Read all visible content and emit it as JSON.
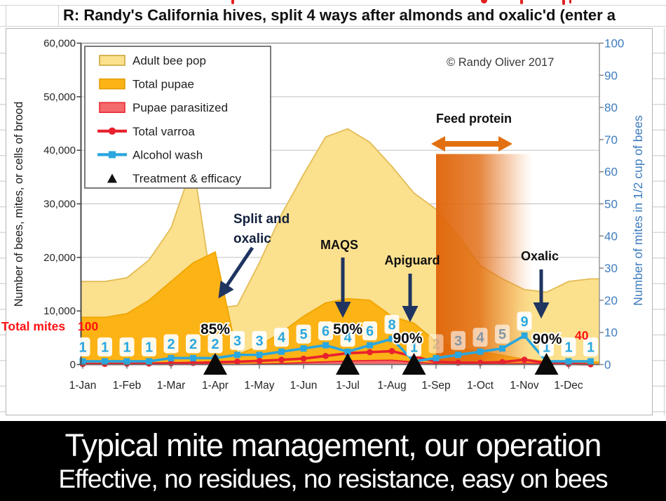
{
  "spreadsheet": {
    "title_row_text": "R: Randy's California hives, split 4 ways after almonds and oxalic'd (enter a"
  },
  "banner": {
    "line1": "Typical mite management, our operation",
    "line2": "Effective, no residues, no resistance, easy on bees"
  },
  "chart_data": {
    "type": "area+line combo, semi-monthly points",
    "x_labels": [
      "1-Jan",
      "1-Feb",
      "1-Mar",
      "1-Apr",
      "1-May",
      "1-Jun",
      "1-Jul",
      "1-Aug",
      "1-Sep",
      "1-Oct",
      "1-Nov",
      "1-Dec"
    ],
    "left_axis": {
      "title": "Number of bees, mites, or cells of brood",
      "min": 0,
      "max": 60000,
      "step": 10000,
      "tick_labels": [
        "0",
        "10,000",
        "20,000",
        "30,000",
        "40,000",
        "50,000",
        "60,000"
      ]
    },
    "right_axis": {
      "title": "Number of mites in 1/2 cup of bees",
      "min": 0,
      "max": 100,
      "step": 10,
      "tick_labels": [
        "0",
        "10",
        "20",
        "30",
        "40",
        "50",
        "60",
        "70",
        "80",
        "90",
        "100"
      ]
    },
    "series": [
      {
        "name": "Adult bee pop",
        "type": "area",
        "axis": "left",
        "fill": "#fbe08e",
        "stroke": "#e3bc55",
        "values": [
          15500,
          15500,
          16200,
          19500,
          25500,
          37500,
          10500,
          11000,
          19000,
          28000,
          35500,
          42500,
          44000,
          41500,
          37000,
          32000,
          29000,
          24000,
          18500,
          16000,
          14000,
          13500,
          15500,
          16000
        ]
      },
      {
        "name": "Total pupae",
        "type": "area",
        "axis": "left",
        "fill": "#fcb315",
        "stroke": "#f0a500",
        "values": [
          8800,
          8800,
          9500,
          12000,
          15500,
          19000,
          21000,
          1800,
          3500,
          6000,
          9000,
          11500,
          12300,
          12000,
          9000,
          7700,
          4300,
          3200,
          2400,
          1700,
          1000,
          600,
          450,
          450
        ]
      },
      {
        "name": "Pupae parasitized",
        "type": "area",
        "axis": "left",
        "fill": "#f4696b",
        "stroke": "#e8212d",
        "values": [
          0,
          0,
          0,
          0,
          0,
          0,
          0,
          0,
          100,
          200,
          350,
          500,
          650,
          750,
          800,
          450,
          150,
          80,
          80,
          120,
          250,
          60,
          20,
          20
        ]
      },
      {
        "name": "Total varroa",
        "type": "line",
        "axis": "left",
        "color": "#e8212d",
        "marker": "circle",
        "values": [
          100,
          110,
          140,
          180,
          230,
          290,
          420,
          520,
          680,
          880,
          1100,
          1600,
          2100,
          2300,
          2500,
          1500,
          500,
          350,
          320,
          450,
          900,
          250,
          120,
          40
        ]
      },
      {
        "name": "Alcohol wash",
        "type": "line",
        "axis": "right",
        "color": "#2aa7de",
        "marker": "square",
        "values": [
          1,
          1,
          1,
          1,
          2,
          2,
          2,
          3,
          3,
          4,
          5,
          6,
          4,
          6,
          8,
          1,
          2,
          3,
          4,
          5,
          9,
          1,
          1,
          1
        ],
        "labels_shown": true,
        "faded_label_indices": [
          17,
          18,
          19
        ],
        "hidden_label_indices": [
          16
        ]
      }
    ],
    "treatments": [
      {
        "x": "1-Apr",
        "x_index": 6,
        "efficacy": "85%"
      },
      {
        "x": "1-Jul",
        "x_index": 12,
        "efficacy": "50%"
      },
      {
        "x": "15-Aug",
        "x_index": 15,
        "efficacy": "90%"
      },
      {
        "x": "15-Nov",
        "x_index": 21,
        "efficacy": "90%"
      }
    ],
    "feed_period": {
      "from_index": 16,
      "to_index": 20,
      "color": "#e0660b"
    },
    "legend": [
      {
        "label": "Adult bee pop",
        "swatch": "area",
        "fill": "#fbe08e",
        "stroke": "#c8a231"
      },
      {
        "label": "Total pupae",
        "swatch": "area",
        "fill": "#fcb315",
        "stroke": "#e09b00"
      },
      {
        "label": "Pupae parasitized",
        "swatch": "area",
        "fill": "#f4696b",
        "stroke": "#e8212d"
      },
      {
        "label": "Total varroa",
        "swatch": "line",
        "color": "#e8212d",
        "marker": "circle"
      },
      {
        "label": "Alcohol wash",
        "swatch": "line",
        "color": "#2aa7de",
        "marker": "square"
      },
      {
        "label": "Treatment & efficacy",
        "swatch": "triangle",
        "color": "#111111"
      }
    ],
    "annotations": {
      "split_line1": "Split and",
      "split_line2": "oxalic",
      "maqs": "MAQS",
      "apiguard": "Apiguard",
      "oxalic": "Oxalic",
      "feed_protein": "Feed protein",
      "copyright": "© Randy Oliver 2017",
      "total_mites_label": "Total mites",
      "total_mites_start": "100",
      "total_mites_end": "40"
    },
    "colors": {
      "wash_line": "#2aa7de",
      "varroa_line": "#e8212d",
      "right_axis_text": "#3e7cbe",
      "navy_arrow": "#1f3460",
      "feed_arrow": "#e2700f",
      "red_note": "#ff1212",
      "gridline": "#c9c9c9"
    }
  }
}
